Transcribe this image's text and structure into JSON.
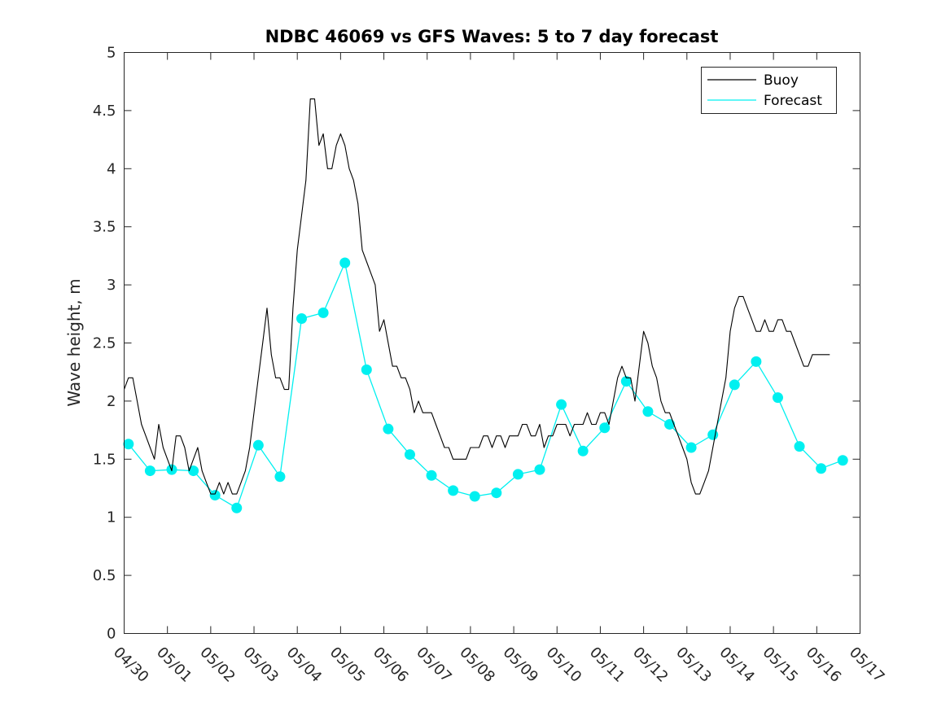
{
  "chart_data": {
    "type": "line",
    "title": "NDBC 46069 vs GFS Waves: 5 to 7 day forecast",
    "ylabel": "Wave height, m",
    "xlabel": "",
    "ylim": [
      0,
      5
    ],
    "xlim": [
      0,
      17
    ],
    "yticks": [
      "0",
      "0.5",
      "1",
      "1.5",
      "2",
      "2.5",
      "3",
      "3.5",
      "4",
      "4.5",
      "5"
    ],
    "xticks": [
      "04/30",
      "05/01",
      "05/02",
      "05/03",
      "05/04",
      "05/05",
      "05/06",
      "05/07",
      "05/08",
      "05/09",
      "05/10",
      "05/11",
      "05/12",
      "05/13",
      "05/14",
      "05/15",
      "05/16",
      "05/17"
    ],
    "legend": {
      "position": "top-right",
      "entries": [
        "Buoy",
        "Forecast"
      ]
    },
    "colors": {
      "buoy": "#000000",
      "forecast": "#00f0f0"
    },
    "series": [
      {
        "name": "Buoy",
        "x": [
          0,
          0.1,
          0.2,
          0.3,
          0.4,
          0.5,
          0.6,
          0.7,
          0.8,
          0.9,
          1.0,
          1.1,
          1.2,
          1.3,
          1.4,
          1.5,
          1.6,
          1.7,
          1.8,
          1.9,
          2.0,
          2.1,
          2.2,
          2.3,
          2.4,
          2.5,
          2.6,
          2.7,
          2.8,
          2.9,
          3.0,
          3.1,
          3.2,
          3.3,
          3.4,
          3.5,
          3.6,
          3.7,
          3.8,
          3.9,
          4.0,
          4.1,
          4.2,
          4.3,
          4.4,
          4.5,
          4.6,
          4.7,
          4.8,
          4.9,
          5.0,
          5.1,
          5.2,
          5.3,
          5.4,
          5.5,
          5.6,
          5.7,
          5.8,
          5.9,
          6.0,
          6.1,
          6.2,
          6.3,
          6.4,
          6.5,
          6.6,
          6.7,
          6.8,
          6.9,
          7.0,
          7.1,
          7.2,
          7.3,
          7.4,
          7.5,
          7.6,
          7.7,
          7.8,
          7.9,
          8.0,
          8.1,
          8.2,
          8.3,
          8.4,
          8.5,
          8.6,
          8.7,
          8.8,
          8.9,
          9.0,
          9.1,
          9.2,
          9.3,
          9.4,
          9.5,
          9.6,
          9.7,
          9.8,
          9.9,
          10.0,
          10.1,
          10.2,
          10.3,
          10.4,
          10.5,
          10.6,
          10.7,
          10.8,
          10.9,
          11.0,
          11.1,
          11.2,
          11.3,
          11.4,
          11.5,
          11.6,
          11.7,
          11.8,
          11.9,
          12.0,
          12.1,
          12.2,
          12.3,
          12.4,
          12.5,
          12.6,
          12.7,
          12.8,
          12.9,
          13.0,
          13.1,
          13.2,
          13.3,
          13.4,
          13.5,
          13.6,
          13.7,
          13.8,
          13.9,
          14.0,
          14.1,
          14.2,
          14.3,
          14.4,
          14.5,
          14.6,
          14.7,
          14.8,
          14.9,
          15.0,
          15.1,
          15.2,
          15.3,
          15.4,
          15.5,
          15.6,
          15.7,
          15.8,
          15.9,
          16.0,
          16.1,
          16.2,
          16.3
        ],
        "y": [
          2.1,
          2.2,
          2.2,
          2.0,
          1.8,
          1.7,
          1.6,
          1.5,
          1.8,
          1.6,
          1.5,
          1.4,
          1.7,
          1.7,
          1.6,
          1.4,
          1.5,
          1.6,
          1.4,
          1.3,
          1.2,
          1.2,
          1.3,
          1.2,
          1.3,
          1.2,
          1.2,
          1.3,
          1.4,
          1.6,
          1.9,
          2.2,
          2.5,
          2.8,
          2.4,
          2.2,
          2.2,
          2.1,
          2.1,
          2.8,
          3.3,
          3.6,
          3.9,
          4.6,
          4.6,
          4.2,
          4.3,
          4.0,
          4.0,
          4.2,
          4.3,
          4.2,
          4.0,
          3.9,
          3.7,
          3.3,
          3.2,
          3.1,
          3.0,
          2.6,
          2.7,
          2.5,
          2.3,
          2.3,
          2.2,
          2.2,
          2.1,
          1.9,
          2.0,
          1.9,
          1.9,
          1.9,
          1.8,
          1.7,
          1.6,
          1.6,
          1.5,
          1.5,
          1.5,
          1.5,
          1.6,
          1.6,
          1.6,
          1.7,
          1.7,
          1.6,
          1.7,
          1.7,
          1.6,
          1.7,
          1.7,
          1.7,
          1.8,
          1.8,
          1.7,
          1.7,
          1.8,
          1.6,
          1.7,
          1.7,
          1.8,
          1.8,
          1.8,
          1.7,
          1.8,
          1.8,
          1.8,
          1.9,
          1.8,
          1.8,
          1.9,
          1.9,
          1.8,
          2.0,
          2.2,
          2.3,
          2.2,
          2.2,
          2.0,
          2.3,
          2.6,
          2.5,
          2.3,
          2.2,
          2.0,
          1.9,
          1.9,
          1.8,
          1.7,
          1.6,
          1.5,
          1.3,
          1.2,
          1.2,
          1.3,
          1.4,
          1.6,
          1.8,
          2.0,
          2.2,
          2.6,
          2.8,
          2.9,
          2.9,
          2.8,
          2.7,
          2.6,
          2.6,
          2.7,
          2.6,
          2.6,
          2.7,
          2.7,
          2.6,
          2.6,
          2.5,
          2.4,
          2.3,
          2.3,
          2.4,
          2.4,
          2.4,
          2.4,
          2.4
        ]
      },
      {
        "name": "Forecast",
        "x": [
          0.1,
          0.6,
          1.1,
          1.6,
          2.1,
          2.6,
          3.1,
          3.6,
          4.1,
          4.6,
          5.1,
          5.6,
          6.1,
          6.6,
          7.1,
          7.6,
          8.1,
          8.6,
          9.1,
          9.6,
          10.1,
          10.6,
          11.1,
          11.6,
          12.1,
          12.6,
          13.1,
          13.6,
          14.1,
          14.6,
          15.1,
          15.6,
          16.1,
          16.6
        ],
        "y": [
          1.63,
          1.4,
          1.41,
          1.4,
          1.19,
          1.08,
          1.62,
          1.35,
          2.71,
          2.76,
          3.19,
          2.27,
          1.76,
          1.54,
          1.36,
          1.23,
          1.18,
          1.21,
          1.37,
          1.41,
          1.97,
          1.57,
          1.77,
          2.17,
          1.91,
          1.8,
          1.6,
          1.71,
          2.14,
          2.34,
          2.03,
          1.61,
          1.42,
          1.49
        ]
      }
    ]
  }
}
